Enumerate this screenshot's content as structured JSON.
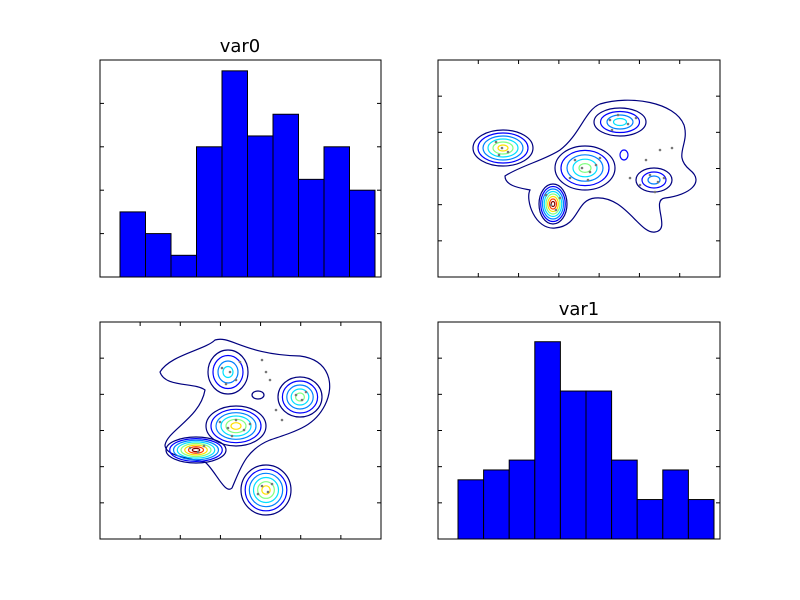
{
  "chart_data": [
    {
      "panel": "top-left",
      "type": "bar",
      "title": "var0",
      "xlabel": "",
      "ylabel": "",
      "bins": 10,
      "values": [
        3,
        2,
        1,
        6,
        9.5,
        6.5,
        7.5,
        4.5,
        6,
        4
      ],
      "ylim": [
        0,
        10
      ],
      "color": "#0000ff",
      "ticks": {
        "x_count": 0,
        "y_count": 4,
        "labels": "hidden"
      }
    },
    {
      "panel": "top-right",
      "type": "contour",
      "title": "",
      "ticks": {
        "x_count": 6,
        "y_count": 5,
        "labels": "hidden"
      },
      "colormap": "jet",
      "levels": 7,
      "scatter_color": "#808080"
    },
    {
      "panel": "bottom-left",
      "type": "contour",
      "title": "",
      "ticks": {
        "x_count": 6,
        "y_count": 5,
        "labels": "hidden"
      },
      "colormap": "jet",
      "levels": 7,
      "scatter_color": "#808080"
    },
    {
      "panel": "bottom-right",
      "type": "bar",
      "title": "var1",
      "xlabel": "",
      "ylabel": "",
      "bins": 10,
      "values": [
        3,
        3.5,
        4,
        10,
        7.5,
        7.5,
        4,
        2,
        3.5,
        2
      ],
      "ylim": [
        0,
        11
      ],
      "color": "#0000ff",
      "ticks": {
        "x_count": 0,
        "y_count": 5,
        "labels": "hidden"
      }
    }
  ]
}
